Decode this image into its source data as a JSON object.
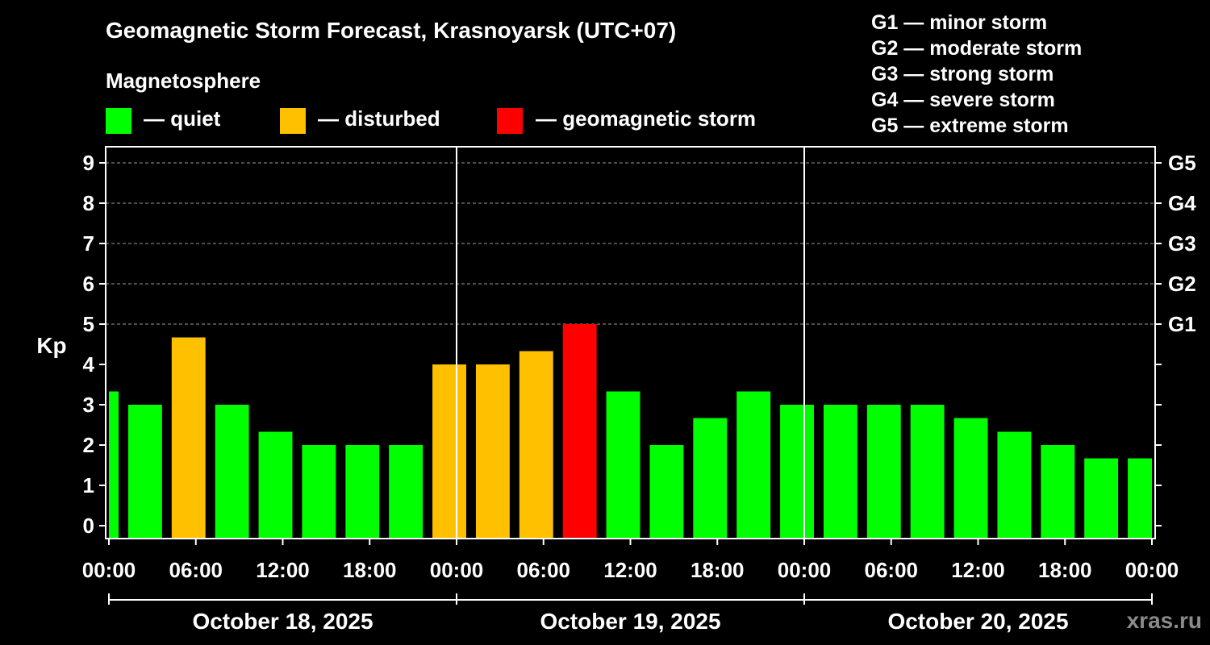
{
  "chart_data": {
    "type": "bar",
    "title": "Geomagnetic Storm Forecast, Krasnoyarsk (UTC+07)",
    "subtitle": "Magnetosphere",
    "ylabel": "Kp",
    "ylim": [
      0,
      9
    ],
    "yticks": [
      "0",
      "1",
      "2",
      "3",
      "4",
      "5",
      "6",
      "7",
      "8",
      "9"
    ],
    "right_ticks": [
      {
        "kp": 5,
        "label": "G1"
      },
      {
        "kp": 6,
        "label": "G2"
      },
      {
        "kp": 7,
        "label": "G3"
      },
      {
        "kp": 8,
        "label": "G4"
      },
      {
        "kp": 9,
        "label": "G5"
      }
    ],
    "x_tick_labels": [
      "00:00",
      "06:00",
      "12:00",
      "18:00",
      "00:00",
      "06:00",
      "12:00",
      "18:00",
      "00:00",
      "06:00",
      "12:00",
      "18:00",
      "00:00"
    ],
    "x_tick_hours": [
      0,
      6,
      12,
      18,
      24,
      30,
      36,
      42,
      48,
      54,
      60,
      66,
      72
    ],
    "x_range_hours": [
      0,
      72
    ],
    "days": [
      {
        "label": "October 18, 2025",
        "start_hour": 0,
        "end_hour": 24
      },
      {
        "label": "October 19, 2025",
        "start_hour": 24,
        "end_hour": 48
      },
      {
        "label": "October 20, 2025",
        "start_hour": 48,
        "end_hour": 72
      }
    ],
    "grid": "dashed horizontal lines at Kp 5-9; solid vertical lines at day boundaries",
    "legend": [
      {
        "status": "quiet",
        "label": "— quiet",
        "color": "#00ff00"
      },
      {
        "status": "disturbed",
        "label": "— disturbed",
        "color": "#ffc000"
      },
      {
        "status": "storm",
        "label": "— geomagnetic storm",
        "color": "#ff0000"
      }
    ],
    "colors": {
      "quiet": "#00ff00",
      "disturbed": "#ffc000",
      "storm": "#ff0000"
    },
    "bars": [
      {
        "start_hour": 0,
        "end_hour": 1,
        "kp": 3.33,
        "status": "quiet"
      },
      {
        "start_hour": 1,
        "end_hour": 4,
        "kp": 3.0,
        "status": "quiet"
      },
      {
        "start_hour": 4,
        "end_hour": 7,
        "kp": 4.67,
        "status": "disturbed"
      },
      {
        "start_hour": 7,
        "end_hour": 10,
        "kp": 3.0,
        "status": "quiet"
      },
      {
        "start_hour": 10,
        "end_hour": 13,
        "kp": 2.33,
        "status": "quiet"
      },
      {
        "start_hour": 13,
        "end_hour": 16,
        "kp": 2.0,
        "status": "quiet"
      },
      {
        "start_hour": 16,
        "end_hour": 19,
        "kp": 2.0,
        "status": "quiet"
      },
      {
        "start_hour": 19,
        "end_hour": 22,
        "kp": 2.0,
        "status": "quiet"
      },
      {
        "start_hour": 22,
        "end_hour": 25,
        "kp": 4.0,
        "status": "disturbed"
      },
      {
        "start_hour": 25,
        "end_hour": 28,
        "kp": 4.0,
        "status": "disturbed"
      },
      {
        "start_hour": 28,
        "end_hour": 31,
        "kp": 4.33,
        "status": "disturbed"
      },
      {
        "start_hour": 31,
        "end_hour": 34,
        "kp": 5.0,
        "status": "storm"
      },
      {
        "start_hour": 34,
        "end_hour": 37,
        "kp": 3.33,
        "status": "quiet"
      },
      {
        "start_hour": 37,
        "end_hour": 40,
        "kp": 2.0,
        "status": "quiet"
      },
      {
        "start_hour": 40,
        "end_hour": 43,
        "kp": 2.67,
        "status": "quiet"
      },
      {
        "start_hour": 43,
        "end_hour": 46,
        "kp": 3.33,
        "status": "quiet"
      },
      {
        "start_hour": 46,
        "end_hour": 49,
        "kp": 3.0,
        "status": "quiet"
      },
      {
        "start_hour": 49,
        "end_hour": 52,
        "kp": 3.0,
        "status": "quiet"
      },
      {
        "start_hour": 52,
        "end_hour": 55,
        "kp": 3.0,
        "status": "quiet"
      },
      {
        "start_hour": 55,
        "end_hour": 58,
        "kp": 3.0,
        "status": "quiet"
      },
      {
        "start_hour": 58,
        "end_hour": 61,
        "kp": 2.67,
        "status": "quiet"
      },
      {
        "start_hour": 61,
        "end_hour": 64,
        "kp": 2.33,
        "status": "quiet"
      },
      {
        "start_hour": 64,
        "end_hour": 67,
        "kp": 2.0,
        "status": "quiet"
      },
      {
        "start_hour": 67,
        "end_hour": 70,
        "kp": 1.67,
        "status": "quiet"
      },
      {
        "start_hour": 70,
        "end_hour": 72,
        "kp": 1.67,
        "status": "quiet"
      }
    ]
  },
  "g_scale": [
    {
      "label": "G1 — minor storm"
    },
    {
      "label": "G2 — moderate storm"
    },
    {
      "label": "G3 — strong storm"
    },
    {
      "label": "G4 — severe storm"
    },
    {
      "label": "G5 — extreme storm"
    }
  ],
  "watermark": "xras.ru"
}
